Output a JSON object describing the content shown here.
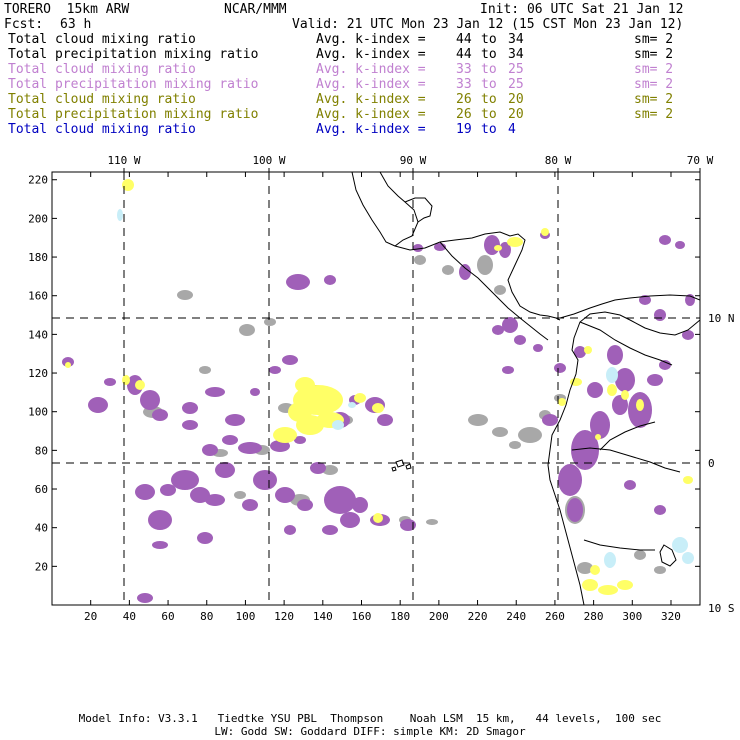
{
  "header": {
    "model_title": "TORERO  15km ARW",
    "org": "NCAR/MMM",
    "init": "Init: 06 UTC Sat 21 Jan 12",
    "fcst_label": "Fcst:",
    "fcst_value": "63 h",
    "valid": "Valid: 21 UTC Mon 23 Jan 12 (15 CST Mon 23 Jan 12)"
  },
  "legend": [
    {
      "text": "Total cloud mixing ratio",
      "index_label": "Avg. k-index =",
      "from": "44",
      "to_word": "to",
      "to": "34",
      "sm": "sm= 2",
      "color": "#000000"
    },
    {
      "text": "Total precipitation mixing ratio",
      "index_label": "Avg. k-index =",
      "from": "44",
      "to_word": "to",
      "to": "34",
      "sm": "sm= 2",
      "color": "#000000"
    },
    {
      "text": "Total cloud mixing ratio",
      "index_label": "Avg. k-index =",
      "from": "33",
      "to_word": "to",
      "to": "25",
      "sm": "sm= 2",
      "color": "#c080d0"
    },
    {
      "text": "Total precipitation mixing ratio",
      "index_label": "Avg. k-index =",
      "from": "33",
      "to_word": "to",
      "to": "25",
      "sm": "sm= 2",
      "color": "#c080d0"
    },
    {
      "text": "Total cloud mixing ratio",
      "index_label": "Avg. k-index =",
      "from": "26",
      "to_word": "to",
      "to": "20",
      "sm": "sm= 2",
      "color": "#808000"
    },
    {
      "text": "Total precipitation mixing ratio",
      "index_label": "Avg. k-index =",
      "from": "26",
      "to_word": "to",
      "to": "20",
      "sm": "sm= 2",
      "color": "#808000"
    },
    {
      "text": "Total cloud mixing ratio",
      "index_label": "Avg. k-index =",
      "from": "19",
      "to_word": "to",
      "to": "4",
      "sm": "",
      "color": "#0000c0"
    }
  ],
  "map": {
    "x_ticks": [
      "20",
      "40",
      "60",
      "80",
      "100",
      "120",
      "140",
      "160",
      "180",
      "200",
      "220",
      "240",
      "260",
      "280",
      "300",
      "320"
    ],
    "y_ticks": [
      "20",
      "40",
      "60",
      "80",
      "100",
      "120",
      "140",
      "160",
      "180",
      "200",
      "220"
    ],
    "lon_labels": [
      "110 W",
      "100 W",
      "90 W",
      "80 W",
      "70 W"
    ],
    "lat_labels": [
      "10 N",
      "0",
      "10 S"
    ],
    "colors": {
      "gray": "#a8a8a8",
      "purple": "#a060b8",
      "yellow": "#ffff66",
      "lightblue": "#c8eef8",
      "coast": "#000000"
    }
  },
  "footer": {
    "line1": "Model Info: V3.3.1   Tiedtke YSU PBL  Thompson    Noah LSM  15 km,   44 levels,  100 sec",
    "line2": "LW: Godd SW: Goddard DIFF: simple KM: 2D Smagor"
  }
}
